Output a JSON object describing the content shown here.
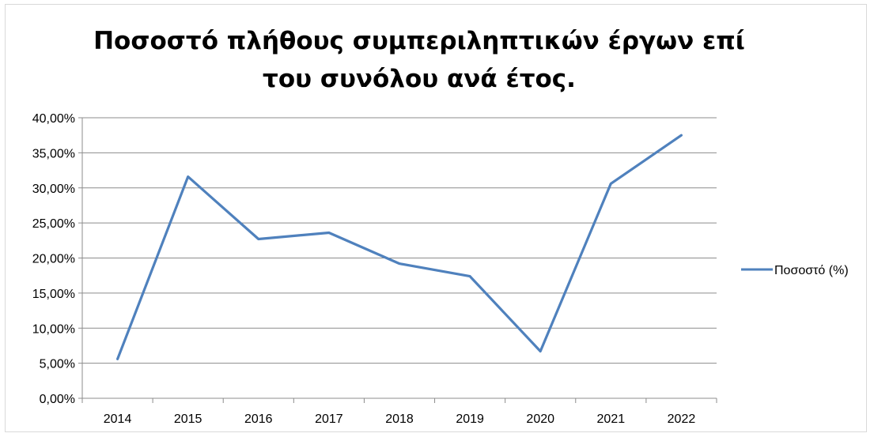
{
  "chart_data": {
    "type": "line",
    "title": "Ποσοστό πλήθους συμπεριληπτικών έργων επί του συνόλου ανά έτος.",
    "categories": [
      "2014",
      "2015",
      "2016",
      "2017",
      "2018",
      "2019",
      "2020",
      "2021",
      "2022"
    ],
    "series": [
      {
        "name": "Ποσοστό (%)",
        "values": [
          5.6,
          31.6,
          22.7,
          23.6,
          19.2,
          17.4,
          6.7,
          30.6,
          37.5
        ],
        "color": "#4f81bd"
      }
    ],
    "ylim": [
      0,
      40
    ],
    "yticks": [
      "0,00%",
      "5,00%",
      "10,00%",
      "15,00%",
      "20,00%",
      "25,00%",
      "30,00%",
      "35,00%",
      "40,00%"
    ],
    "grid": true,
    "legend_position": "right"
  }
}
